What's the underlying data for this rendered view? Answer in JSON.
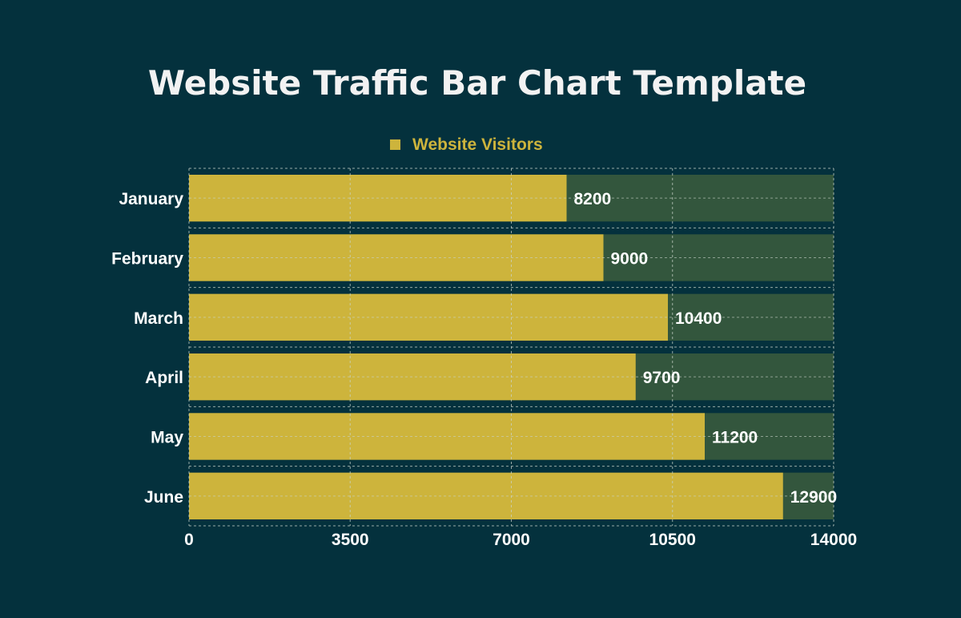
{
  "colors": {
    "background": "#04313d",
    "bar": "#cdb43c",
    "track": "#33563d",
    "title": "#f2f2f2",
    "legend_text": "#cdb43c",
    "labels": "#ffffff",
    "grid": "#c9d3c9"
  },
  "chart_data": {
    "type": "bar",
    "orientation": "horizontal",
    "title": "Website Traffic Bar Chart Template",
    "categories": [
      "January",
      "February",
      "March",
      "April",
      "May",
      "June"
    ],
    "series": [
      {
        "name": "Website Visitors",
        "values": [
          8200,
          9000,
          10400,
          9700,
          11200,
          12900
        ]
      }
    ],
    "xlim": [
      0,
      14000
    ],
    "x_ticks": [
      0,
      3500,
      7000,
      10500,
      14000
    ],
    "legend_position": "top-center",
    "grid": true,
    "data_labels": true
  }
}
